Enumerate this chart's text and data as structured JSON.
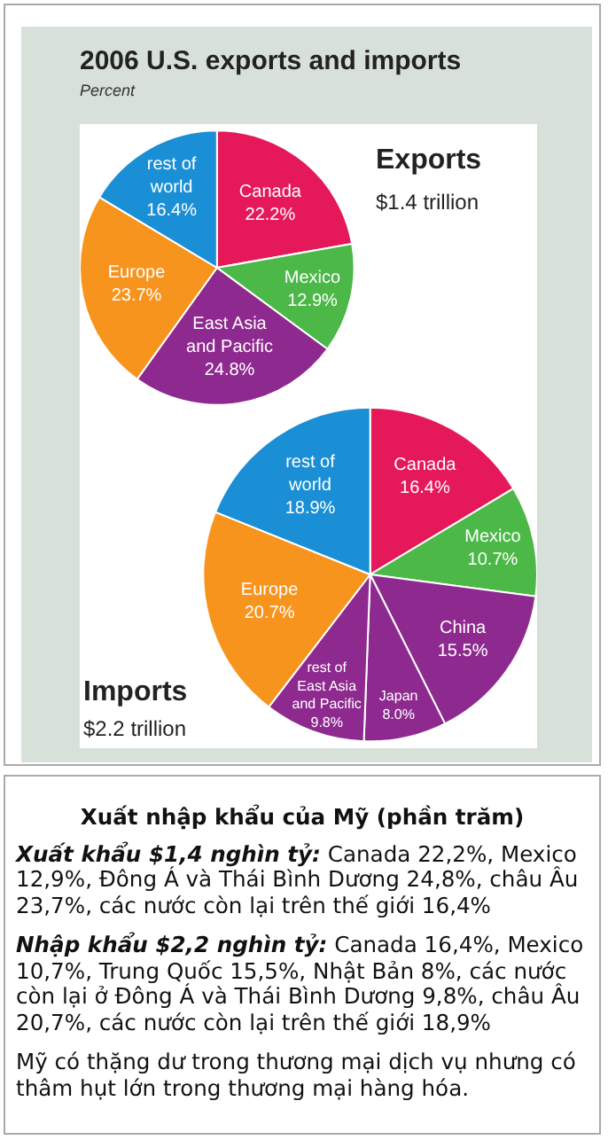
{
  "chart_data": [
    {
      "type": "pie",
      "title": "2006 U.S. exports and imports",
      "subtitle": "Percent",
      "annotations": [
        "Exports",
        "$1.4 trillion"
      ],
      "categories": [
        "Canada",
        "Mexico",
        "East Asia and Pacific",
        "Europe",
        "rest of world"
      ],
      "values": [
        22.2,
        12.9,
        24.8,
        23.7,
        16.4
      ],
      "value_labels": [
        "22.2%",
        "12.9%",
        "24.8%",
        "23.7%",
        "16.4%"
      ],
      "colors": [
        "#e5195a",
        "#4cb848",
        "#8e2a8f",
        "#f7941d",
        "#1a8fd6"
      ]
    },
    {
      "type": "pie",
      "annotations": [
        "Imports",
        "$2.2 trillion"
      ],
      "categories": [
        "Canada",
        "Mexico",
        "China",
        "Japan",
        "rest of East Asia and Pacific",
        "Europe",
        "rest of world"
      ],
      "values": [
        16.4,
        10.7,
        15.5,
        8.0,
        9.8,
        20.7,
        18.9
      ],
      "value_labels": [
        "16.4%",
        "10.7%",
        "15.5%",
        "8.0%",
        "9.8%",
        "20.7%",
        "18.9%"
      ],
      "colors": [
        "#e5195a",
        "#4cb848",
        "#8e2a8f",
        "#8e2a8f",
        "#8e2a8f",
        "#f7941d",
        "#1a8fd6"
      ]
    },
    {
      "type": "other",
      "title": "Xuất nhập khẩu của Mỹ (phần trăm)",
      "annotations": [
        "Xuất khẩu $1,4 nghìn tỷ:",
        "Canada 22,2%, Mexico 12,9%, Đông Á và Thái Bình Dương 24,8%, châu Âu 23,7%, các nước còn lại trên thế giới 16,4%",
        "Nhập khẩu $2,2 nghìn tỷ:",
        "Canada 16,4%, Mexico 10,7%, Trung Quốc 15,5%, Nhật Bản 8%, các nước còn lại ở Đông Á và Thái Bình Dương 9,8%, châu Âu 20,7%, các nước còn lại trên thế giới 18,9%",
        "Mỹ có thặng dư trong thương mại dịch vụ nhưng có thâm hụt lớn trong thương mại hàng hóa."
      ]
    }
  ]
}
